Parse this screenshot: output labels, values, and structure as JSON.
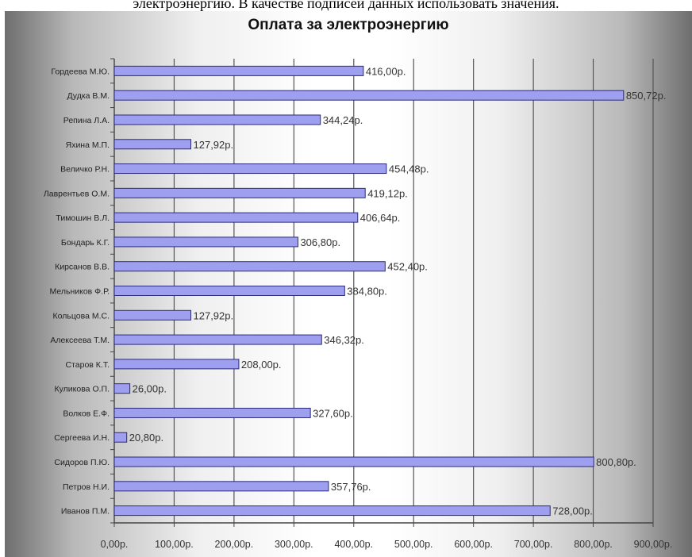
{
  "page": {
    "caption": "электроэнергию. В качестве подписей данных использовать значения."
  },
  "chart_data": {
    "type": "bar",
    "orientation": "horizontal",
    "title": "Оплата за электроэнергию",
    "categories": [
      "Гордеева М.Ю.",
      "Дудка В.М.",
      "Репина Л.А.",
      "Яхина М.П.",
      "Величко Р.Н.",
      "Лаврентьев О.М.",
      "Тимошин В.Л.",
      "Бондарь К.Г.",
      "Кирсанов В.В.",
      "Мельников Ф.Р.",
      "Кольцова М.С.",
      "Алексеева Т.М.",
      "Старов К.Т.",
      "Куликова О.П.",
      "Волков Е.Ф.",
      "Сергеева И.Н.",
      "Сидоров П.Ю.",
      "Петров Н.И.",
      "Иванов П.М."
    ],
    "values": [
      416.0,
      850.72,
      344.24,
      127.92,
      454.48,
      419.12,
      406.64,
      306.8,
      452.4,
      384.8,
      127.92,
      346.32,
      208.0,
      26.0,
      327.6,
      20.8,
      800.8,
      357.76,
      728.0
    ],
    "value_labels": [
      "416,00р.",
      "850,72р.",
      "344,24р.",
      "127,92р.",
      "454,48р.",
      "419,12р.",
      "406,64р.",
      "306,80р.",
      "452,40р.",
      "384,80р.",
      "127,92р.",
      "346,32р.",
      "208,00р.",
      "26,00р.",
      "327,60р.",
      "20,80р.",
      "800,80р.",
      "357,76р.",
      "728,00р."
    ],
    "xlim": [
      0,
      900
    ],
    "xticks": [
      0,
      100,
      200,
      300,
      400,
      500,
      600,
      700,
      800,
      900
    ],
    "xtick_labels": [
      "0,00р.",
      "100,00р.",
      "200,00р.",
      "300,00р.",
      "400,00р.",
      "500,00р.",
      "600,00р.",
      "700,00р.",
      "800,00р.",
      "900,00р."
    ],
    "grid": true,
    "legend": false,
    "colors": {
      "bar_fill": "#9f9ff0",
      "bar_stroke": "#2a2a7a",
      "grid": "#555555",
      "axis": "#444444"
    }
  }
}
